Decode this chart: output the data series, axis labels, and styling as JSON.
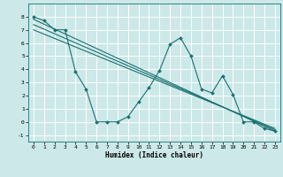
{
  "xlabel": "Humidex (Indice chaleur)",
  "bg_color": "#cce8e8",
  "grid_color": "#ffffff",
  "line_color": "#1a7070",
  "xlim": [
    -0.5,
    23.5
  ],
  "ylim": [
    -1.5,
    9.0
  ],
  "xticks": [
    0,
    1,
    2,
    3,
    4,
    5,
    6,
    7,
    8,
    9,
    10,
    11,
    12,
    13,
    14,
    15,
    16,
    17,
    18,
    19,
    20,
    21,
    22,
    23
  ],
  "yticks": [
    -1,
    0,
    1,
    2,
    3,
    4,
    5,
    6,
    7,
    8
  ],
  "line1_x": [
    0,
    1,
    2,
    3,
    4,
    5,
    6,
    7,
    8,
    9,
    10,
    11,
    12,
    13,
    14,
    15,
    16,
    17,
    18,
    19,
    20,
    21,
    22,
    23
  ],
  "line1_y": [
    8.0,
    7.7,
    7.0,
    7.0,
    3.8,
    2.5,
    0.0,
    0.0,
    0.0,
    0.4,
    1.5,
    2.6,
    3.9,
    5.9,
    6.4,
    5.0,
    2.5,
    2.2,
    3.5,
    2.1,
    0.0,
    0.0,
    -0.5,
    -0.7
  ],
  "line2_x": [
    0,
    23
  ],
  "line2_y": [
    7.8,
    -0.7
  ],
  "line3_x": [
    0,
    23
  ],
  "line3_y": [
    7.0,
    -0.5
  ],
  "line4_x": [
    0,
    23
  ],
  "line4_y": [
    7.4,
    -0.6
  ]
}
